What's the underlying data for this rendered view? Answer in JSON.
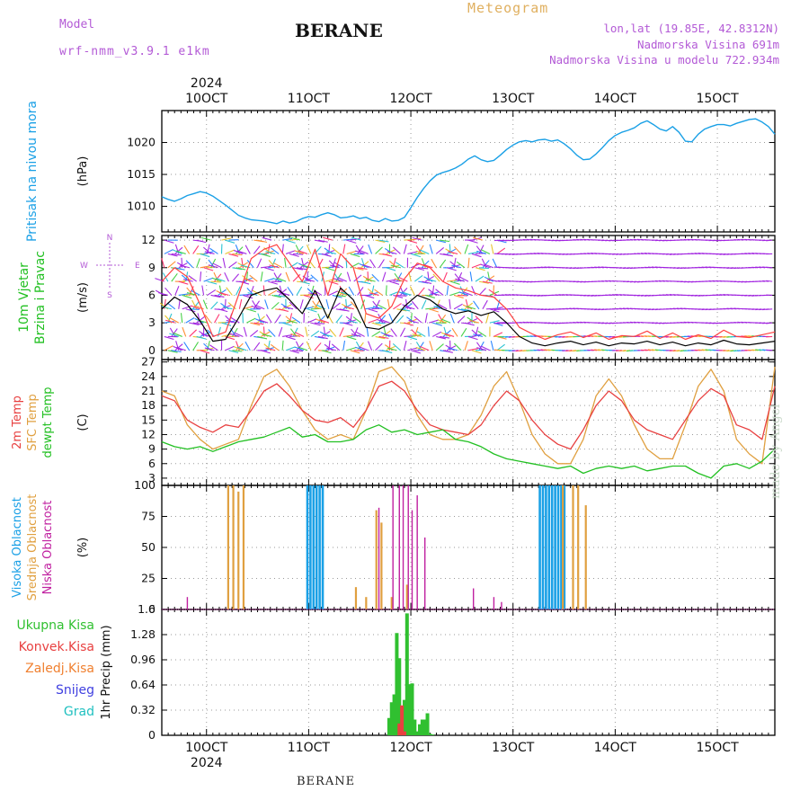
{
  "header": {
    "model_label": "Model",
    "model_name": "wrf-nmm_v3.9.1 e1km",
    "meteogram_title": "Meteogram",
    "station": "BERANE",
    "lonlat": "lon,lat (19.85E, 42.8312N)",
    "elevation": "Nadmorska Visina 691m",
    "elevation_model": "Nadmorska Visina u modelu 722.934m"
  },
  "time_axis": {
    "year": "2024",
    "day_labels": [
      "10OCT",
      "11OCT",
      "12OCT",
      "13OCT",
      "14OCT",
      "15OCT"
    ]
  },
  "footer": {
    "station": "BERANE",
    "watermark": "made by Angel"
  },
  "colors": {
    "pressure": "#1aa0e6",
    "wind_speed": "#000000",
    "wind_gust": "#ff4040",
    "temp_2m": "#e84040",
    "temp_sfc": "#e0a040",
    "dewpoint": "#22c022",
    "cloud_high": "#1aa0e6",
    "cloud_mid": "#e0a040",
    "cloud_low": "#c020a0",
    "precip_total": "#30c030",
    "precip_conv": "#e84040",
    "precip_frz": "#f08030",
    "snow": "#4040e0",
    "hail": "#20c0c0"
  },
  "chart_data": [
    {
      "panel": "pressure",
      "type": "line",
      "ylabel_left": "Pritisak na nivou mora",
      "ylabel_unit": "(hPa)",
      "ylim": [
        1006,
        1025
      ],
      "yticks": [
        1010,
        1015,
        1020
      ],
      "grid": true,
      "series": [
        {
          "x": [
            0.0,
            0.25,
            0.5,
            0.75,
            1.0,
            1.25,
            1.5,
            1.75,
            2.0,
            2.25,
            2.5,
            2.75,
            3.0,
            3.25,
            3.5,
            3.75,
            4.0,
            4.25,
            4.5,
            4.75,
            5.0,
            5.25,
            5.5,
            5.75,
            6.0,
            6.25,
            6.5,
            6.75,
            7.0,
            7.25,
            7.5,
            7.75,
            8.0,
            8.25,
            8.5,
            8.75,
            9.0,
            9.25,
            9.5,
            9.75,
            10.0,
            10.25,
            10.5,
            10.75,
            11.0,
            11.25,
            11.5,
            11.75,
            12.0,
            12.25,
            12.5,
            12.75,
            13.0,
            13.25,
            13.5,
            13.75,
            14.0,
            14.25,
            14.5,
            14.75,
            15.0,
            15.25,
            15.5,
            15.75,
            16.0,
            16.25,
            16.5,
            16.75,
            17.0,
            17.25,
            17.5,
            17.75,
            18.0,
            18.25,
            18.5,
            18.75,
            19.0,
            19.25,
            19.5,
            19.75,
            20.0,
            20.25,
            20.5,
            20.75,
            21.0,
            21.25,
            21.5,
            21.75,
            22.0,
            22.25,
            22.5,
            22.75,
            23.0,
            23.25,
            23.5,
            23.75,
            24.0
          ],
          "values": [
            1011.5,
            1011.1,
            1010.8,
            1011.2,
            1011.7,
            1012.0,
            1012.3,
            1012.1,
            1011.6,
            1010.9,
            1010.2,
            1009.4,
            1008.6,
            1008.2,
            1007.9,
            1007.8,
            1007.7,
            1007.5,
            1007.3,
            1007.7,
            1007.4,
            1007.6,
            1008.1,
            1008.4,
            1008.3,
            1008.7,
            1009.0,
            1008.7,
            1008.2,
            1008.3,
            1008.5,
            1008.1,
            1008.3,
            1007.8,
            1007.6,
            1008.1,
            1007.7,
            1007.8,
            1008.3,
            1009.8,
            1011.4,
            1012.8,
            1014.0,
            1014.9,
            1015.3,
            1015.6,
            1016.0,
            1016.6,
            1017.4,
            1017.9,
            1017.3,
            1017.0,
            1017.2,
            1018.0,
            1018.9,
            1019.6,
            1020.1,
            1020.3,
            1020.1,
            1020.4,
            1020.5,
            1020.2,
            1020.4,
            1019.8,
            1019.0,
            1018.0,
            1017.3,
            1017.4,
            1018.2,
            1019.2,
            1020.3,
            1021.1,
            1021.6,
            1021.9,
            1022.3,
            1023.0,
            1023.4,
            1022.8,
            1022.1,
            1021.8,
            1022.5,
            1021.6,
            1020.2,
            1020.1,
            1021.3,
            1022.1,
            1022.5,
            1022.8,
            1022.8,
            1022.6,
            1023.0,
            1023.3,
            1023.6,
            1023.7,
            1023.2,
            1022.5,
            1021.3
          ]
        }
      ]
    },
    {
      "panel": "wind",
      "type": "line",
      "ylabel_left": [
        "10m Vjetar",
        "Brzina i Pravac"
      ],
      "ylabel_unit": "(m/s)",
      "compass_legend": [
        "N",
        "S",
        "W",
        "E"
      ],
      "ylim": [
        -1,
        12.5
      ],
      "yticks": [
        0,
        3,
        6,
        9,
        12
      ],
      "grid": true,
      "series": [
        {
          "name": "speed",
          "x": [
            0,
            0.5,
            1,
            1.5,
            2,
            2.5,
            3,
            3.5,
            4,
            4.5,
            5,
            5.5,
            6,
            6.5,
            7,
            7.5,
            8,
            8.5,
            9,
            9.5,
            10,
            10.5,
            11,
            11.5,
            12,
            12.5,
            13,
            13.5,
            14,
            14.5,
            15,
            15.5,
            16,
            16.5,
            17,
            17.5,
            18,
            18.5,
            19,
            19.5,
            20,
            20.5,
            21,
            21.5,
            22,
            22.5,
            23,
            23.5,
            24
          ],
          "values": [
            4.5,
            5.8,
            5.0,
            3.2,
            1.0,
            1.2,
            3.5,
            6.0,
            6.5,
            6.8,
            5.5,
            4.0,
            6.5,
            3.5,
            6.8,
            5.5,
            2.5,
            2.3,
            3.0,
            4.8,
            6.0,
            5.5,
            4.5,
            4.0,
            4.3,
            3.8,
            4.2,
            3.0,
            1.5,
            0.8,
            0.5,
            0.8,
            1.0,
            0.6,
            0.9,
            0.5,
            0.8,
            0.7,
            1.0,
            0.6,
            0.9,
            0.5,
            0.8,
            0.6,
            1.1,
            0.7,
            0.6,
            0.8,
            1.0
          ]
        },
        {
          "name": "gust",
          "x": [
            0,
            0.5,
            1,
            1.5,
            2,
            2.5,
            3,
            3.5,
            4,
            4.5,
            5,
            5.5,
            6,
            6.5,
            7,
            7.5,
            8,
            8.5,
            9,
            9.5,
            10,
            10.5,
            11,
            11.5,
            12,
            12.5,
            13,
            13.5,
            14,
            14.5,
            15,
            15.5,
            16,
            16.5,
            17,
            17.5,
            18,
            18.5,
            19,
            19.5,
            20,
            20.5,
            21,
            21.5,
            22,
            22.5,
            23,
            23.5,
            24
          ],
          "values": [
            7.5,
            9.0,
            8.0,
            5.0,
            1.5,
            2.0,
            6.0,
            10.0,
            11.0,
            11.5,
            9.5,
            7.5,
            11.0,
            6.0,
            10.5,
            9.0,
            4.0,
            3.5,
            4.8,
            7.8,
            9.5,
            9.0,
            7.5,
            6.8,
            6.5,
            6.0,
            5.8,
            4.5,
            2.5,
            1.8,
            1.2,
            1.7,
            2.0,
            1.4,
            1.9,
            1.2,
            1.6,
            1.5,
            2.1,
            1.3,
            1.9,
            1.2,
            1.7,
            1.3,
            2.2,
            1.5,
            1.4,
            1.7,
            2.0
          ]
        }
      ]
    },
    {
      "panel": "temperature",
      "type": "line",
      "ylabel_left": [
        "2m Temp",
        "SFC Temp",
        "dewpt Temp"
      ],
      "ylabel_unit": "(C)",
      "ylim": [
        1.5,
        27.5
      ],
      "yticks": [
        3,
        6,
        9,
        12,
        15,
        18,
        21,
        24,
        27
      ],
      "grid": true,
      "series": [
        {
          "name": "2m Temp",
          "x": [
            0,
            0.5,
            1,
            1.5,
            2,
            2.5,
            3,
            3.5,
            4,
            4.5,
            5,
            5.5,
            6,
            6.5,
            7,
            7.5,
            8,
            8.5,
            9,
            9.5,
            10,
            10.5,
            11,
            11.5,
            12,
            12.5,
            13,
            13.5,
            14,
            14.5,
            15,
            15.5,
            16,
            16.5,
            17,
            17.5,
            18,
            18.5,
            19,
            19.5,
            20,
            20.5,
            21,
            21.5,
            22,
            22.5,
            23,
            23.5,
            24
          ],
          "values": [
            20,
            19,
            15,
            13.5,
            12.5,
            14,
            13.5,
            17,
            21,
            22.5,
            20,
            17,
            15,
            14.5,
            15.5,
            13.5,
            17,
            22,
            23,
            21,
            17,
            14,
            13,
            12.5,
            12,
            14,
            18,
            21,
            19,
            15,
            12,
            10,
            9,
            13,
            18,
            21,
            19,
            15,
            13,
            12,
            11,
            15,
            19,
            21.5,
            20,
            14,
            13,
            11,
            22
          ]
        },
        {
          "name": "SFC Temp",
          "x": [
            0,
            0.5,
            1,
            1.5,
            2,
            2.5,
            3,
            3.5,
            4,
            4.5,
            5,
            5.5,
            6,
            6.5,
            7,
            7.5,
            8,
            8.5,
            9,
            9.5,
            10,
            10.5,
            11,
            11.5,
            12,
            12.5,
            13,
            13.5,
            14,
            14.5,
            15,
            15.5,
            16,
            16.5,
            17,
            17.5,
            18,
            18.5,
            19,
            19.5,
            20,
            20.5,
            21,
            21.5,
            22,
            22.5,
            23,
            23.5,
            24
          ],
          "values": [
            21,
            20,
            14,
            11,
            9,
            10,
            11,
            18,
            24,
            25.5,
            22,
            17,
            13,
            11,
            12,
            11,
            17,
            25,
            26,
            23,
            16,
            12,
            11,
            11,
            12,
            16,
            22,
            25,
            19,
            12,
            8,
            6,
            6,
            11,
            20,
            23.5,
            20,
            14,
            9,
            7,
            7,
            14,
            22,
            25.5,
            21,
            11,
            8,
            6,
            26
          ]
        },
        {
          "name": "dewpt Temp",
          "x": [
            0,
            0.5,
            1,
            1.5,
            2,
            2.5,
            3,
            3.5,
            4,
            4.5,
            5,
            5.5,
            6,
            6.5,
            7,
            7.5,
            8,
            8.5,
            9,
            9.5,
            10,
            10.5,
            11,
            11.5,
            12,
            12.5,
            13,
            13.5,
            14,
            14.5,
            15,
            15.5,
            16,
            16.5,
            17,
            17.5,
            18,
            18.5,
            19,
            19.5,
            20,
            20.5,
            21,
            21.5,
            22,
            22.5,
            23,
            23.5,
            24
          ],
          "values": [
            10.5,
            9.5,
            9.0,
            9.5,
            8.5,
            9.5,
            10.5,
            11.0,
            11.5,
            12.5,
            13.5,
            11.5,
            12.0,
            10.5,
            10.5,
            11.0,
            13.0,
            14.0,
            12.5,
            13.0,
            12.0,
            12.5,
            13.0,
            11.0,
            10.5,
            9.5,
            8.0,
            7.0,
            6.5,
            6.0,
            5.5,
            5.0,
            5.5,
            4.0,
            5.0,
            5.5,
            5.0,
            5.5,
            4.5,
            5.0,
            5.5,
            5.5,
            4.0,
            3.0,
            5.5,
            6.0,
            5.0,
            6.5,
            9.0
          ]
        }
      ]
    },
    {
      "panel": "clouds",
      "type": "bar",
      "ylabel_left": [
        "Visoka Oblacnost",
        "Srednja Oblacnost",
        "Niska Oblacnost"
      ],
      "ylabel_unit": "(%)",
      "ylim": [
        0,
        100
      ],
      "yticks": [
        0,
        25,
        50,
        75,
        100
      ],
      "grid": true,
      "series": [
        {
          "name": "Visoka Oblacnost",
          "x": [
            5.7,
            5.82,
            5.94,
            6.06,
            6.18,
            6.3,
            14.8,
            14.92,
            15.04,
            15.16,
            15.28,
            15.4,
            15.52,
            15.64,
            15.76
          ],
          "values": [
            100,
            100,
            100,
            100,
            100,
            100,
            100,
            100,
            100,
            100,
            100,
            100,
            100,
            100,
            100
          ]
        },
        {
          "name": "Srednja Oblacnost",
          "x": [
            2.6,
            2.8,
            3.0,
            3.2,
            7.6,
            8.0,
            8.4,
            8.6,
            9.0,
            9.6,
            15.7,
            16.1,
            16.3,
            16.6
          ],
          "values": [
            100,
            100,
            95,
            100,
            18,
            10,
            80,
            70,
            10,
            20,
            100,
            100,
            100,
            84
          ]
        },
        {
          "name": "Niska Oblacnost",
          "x": [
            1.0,
            8.5,
            9.05,
            9.3,
            9.45,
            9.65,
            9.8,
            10.0,
            10.3,
            12.2,
            13.0,
            13.3
          ],
          "values": [
            10,
            82,
            100,
            100,
            100,
            100,
            80,
            92,
            58,
            17,
            10,
            6
          ]
        }
      ]
    },
    {
      "panel": "precipitation",
      "type": "bar",
      "ylabel_left": [
        "Ukupna Kisa",
        "Konvek.Kisa",
        "Zaledj.Kisa",
        "Snijeg",
        "Grad"
      ],
      "ylabel_unit": "1hr Precip (mm)",
      "ylim": [
        0,
        1.6
      ],
      "yticks": [
        0,
        0.32,
        0.64,
        0.96,
        1.28,
        1.6
      ],
      "grid": true,
      "series": [
        {
          "name": "Ukupna Kisa",
          "x": [
            8.9,
            9.0,
            9.1,
            9.2,
            9.3,
            9.4,
            9.5,
            9.6,
            9.7,
            9.8,
            9.9,
            10.0,
            10.1,
            10.2,
            10.3,
            10.4,
            10.5,
            10.6
          ],
          "values": [
            0.22,
            0.42,
            0.52,
            1.3,
            0.98,
            0.3,
            0.45,
            1.55,
            0.65,
            0.66,
            0.2,
            0.05,
            0.14,
            0.2,
            0.2,
            0.28,
            0.02,
            0.01
          ]
        },
        {
          "name": "Konvek.Kisa",
          "x": [
            9.3,
            9.4,
            9.5
          ],
          "values": [
            0.15,
            0.38,
            0.05
          ]
        }
      ]
    }
  ]
}
